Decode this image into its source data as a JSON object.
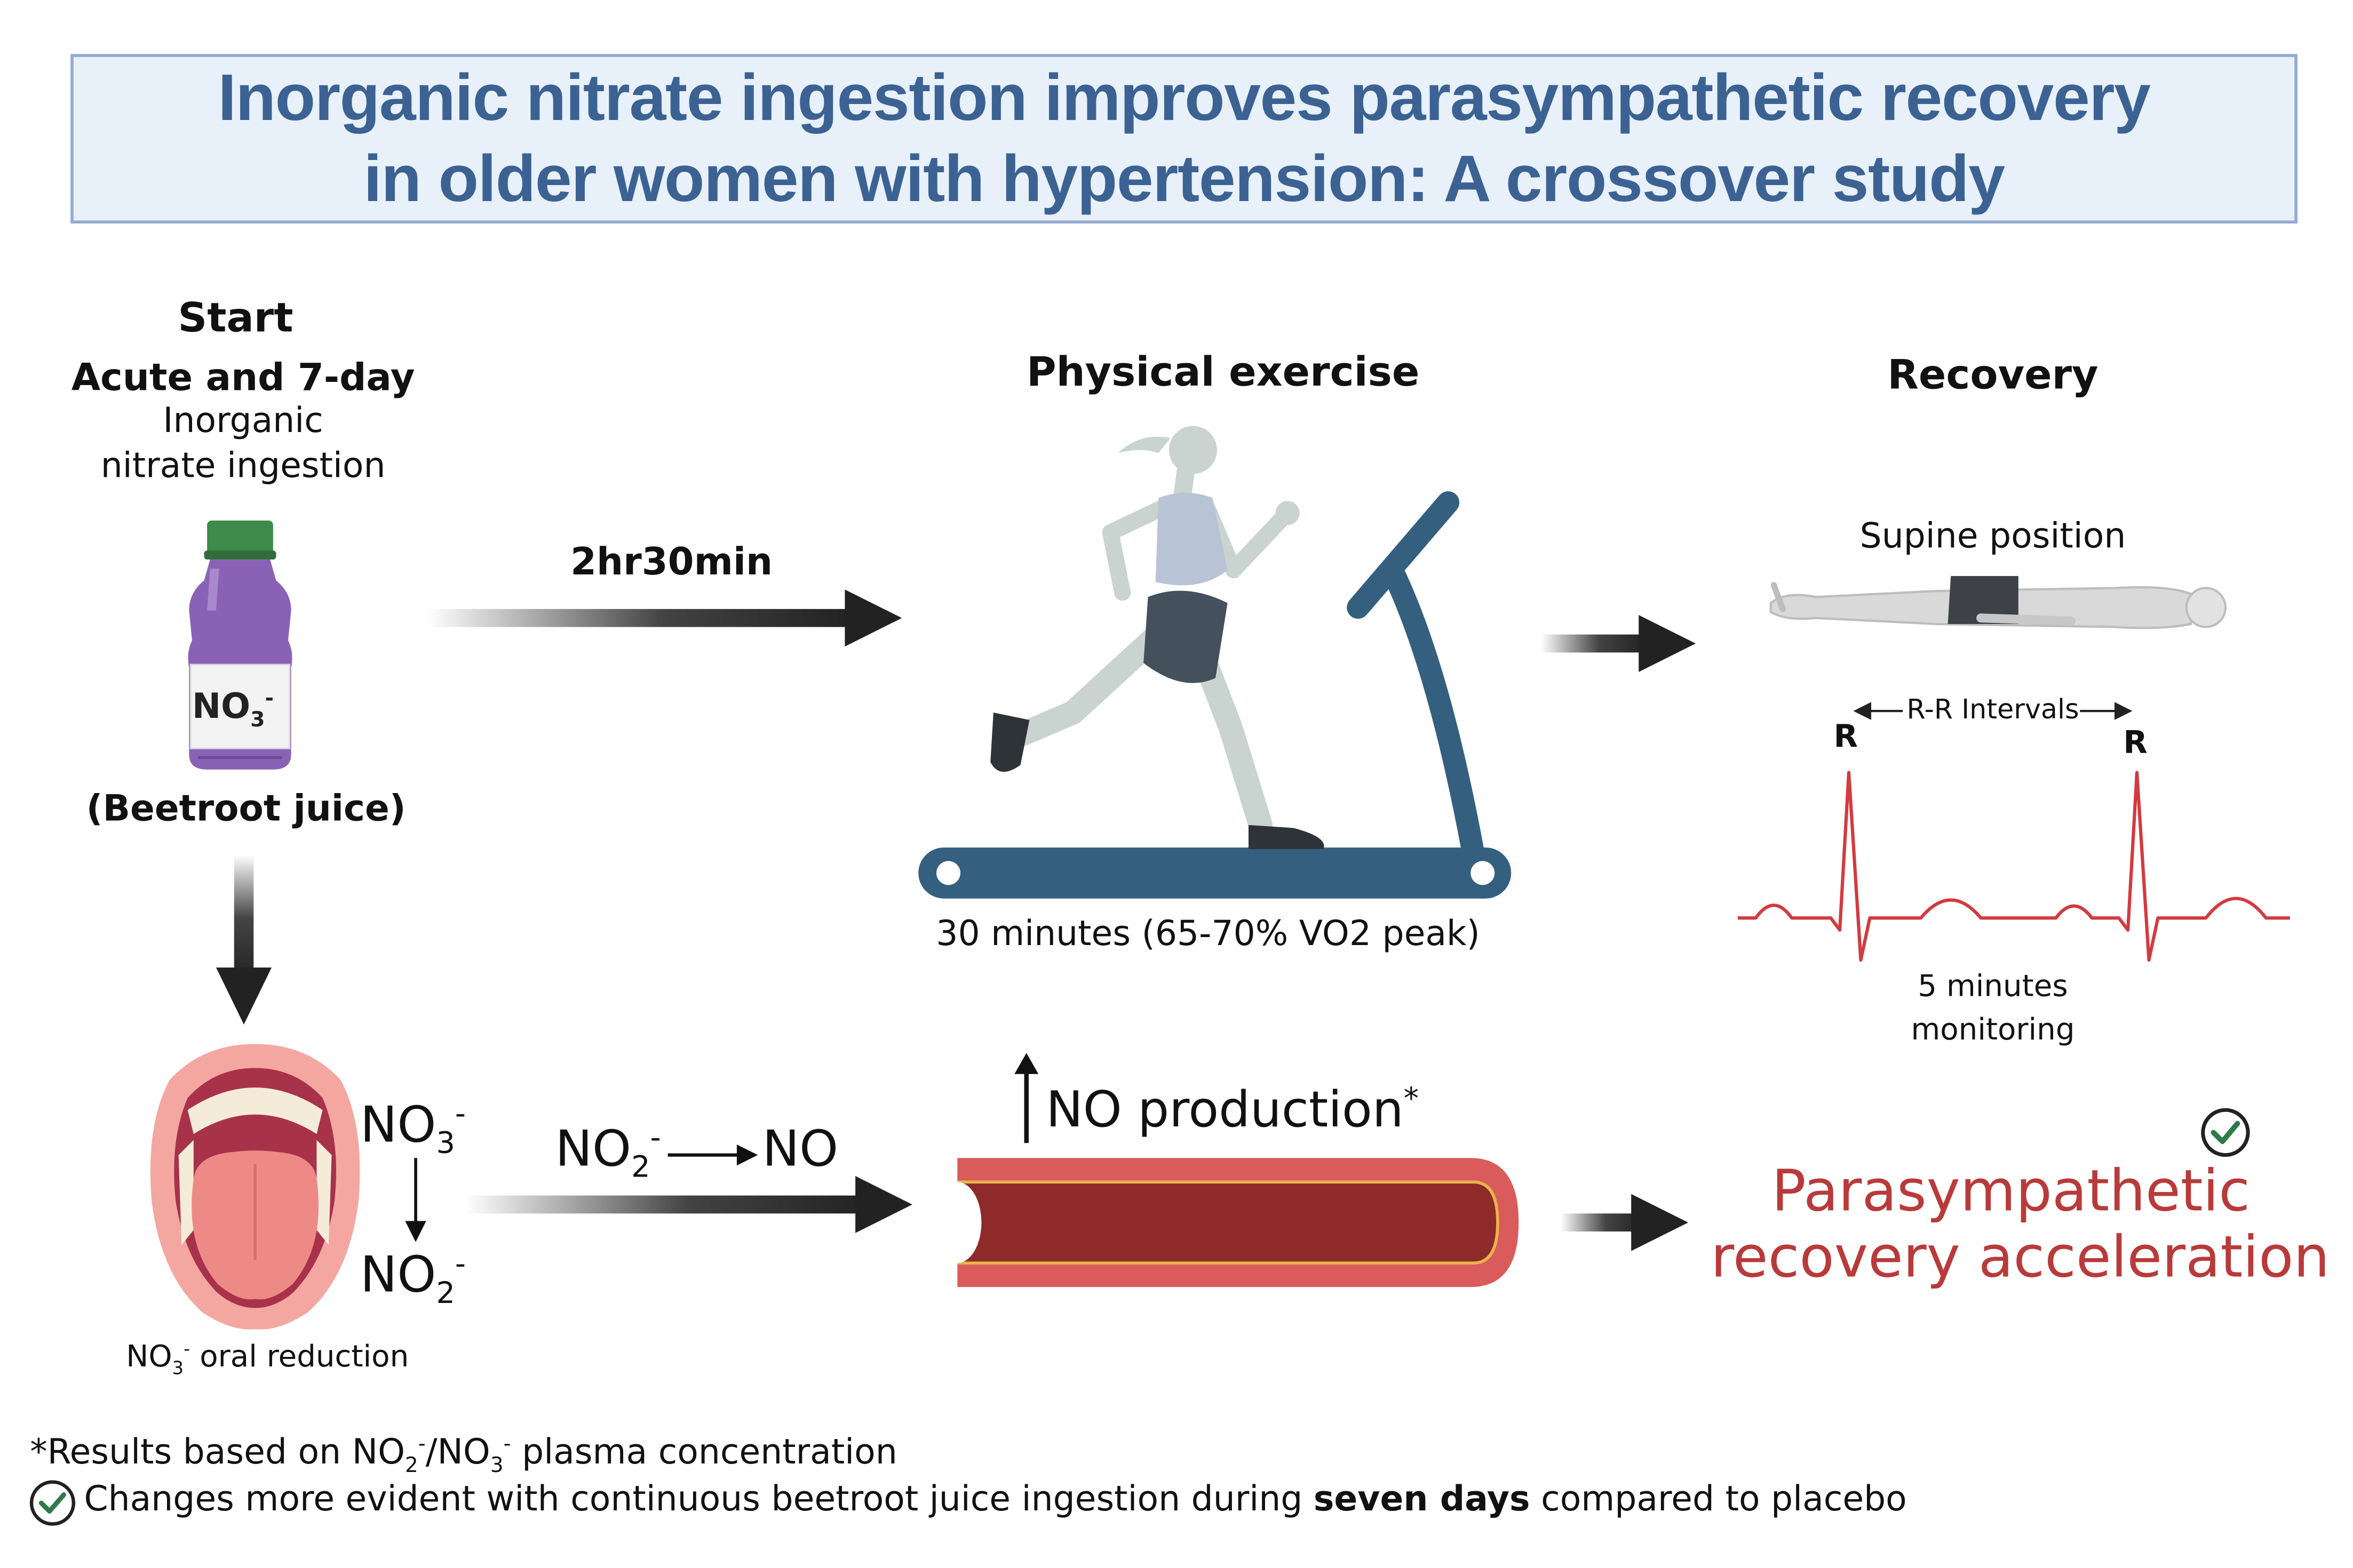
{
  "title": {
    "line1": "Inorganic nitrate ingestion improves parasympathetic recovery",
    "line2": "in older women with hypertension: A crossover study"
  },
  "start": {
    "heading": "Start",
    "subheading": "Acute and 7-day",
    "line1": "Inorganic",
    "line2": "nitrate ingestion",
    "bottle_label": {
      "base": "NO",
      "sub": "3",
      "sup": "-"
    },
    "caption": "(Beetroot juice)"
  },
  "arrow_delay_label": "2hr30min",
  "exercise": {
    "heading": "Physical exercise",
    "caption": "30 minutes (65-70% VO2 peak)"
  },
  "recovery": {
    "heading": "Recovery",
    "position_label": "Supine position",
    "rr_label": "R-R Intervals",
    "r_peak": "R",
    "monitoring_line1": "5 minutes",
    "monitoring_line2": "monitoring"
  },
  "oral": {
    "nitrate": {
      "base": "NO",
      "sub": "3",
      "sup": "-"
    },
    "nitrite": {
      "base": "NO",
      "sub": "2",
      "sup": "-"
    },
    "caption": {
      "base": "NO",
      "sub": "3",
      "sup": "-",
      "rest": " oral reduction"
    }
  },
  "conversion": {
    "from": {
      "base": "NO",
      "sub": "2",
      "sup": "-"
    },
    "to": "NO"
  },
  "vessel": {
    "label": "NO production",
    "asterisk": "*"
  },
  "outcome": {
    "line1": "Parasympathetic",
    "line2": "recovery acceleration"
  },
  "footnotes": {
    "note1": {
      "prefix": "*Results based on NO",
      "sub1": "2",
      "sup1": "-",
      "mid": "/NO",
      "sub2": "3",
      "sup2": "-",
      "suffix": " plasma concentration"
    },
    "note2": {
      "before": "Changes more evident with continuous beetroot juice ingestion during ",
      "bold": "seven days",
      "after": " compared to placebo"
    }
  },
  "colors": {
    "title_text": "#3b6293",
    "title_bg": "#e8f0fa",
    "title_border": "#93abd3",
    "treadmill": "#355f7e",
    "ecg": "#d33a3f",
    "outcome": "#b93a3a",
    "check": "#2f7a4a",
    "bottle": "#8a62b5",
    "cap": "#3d8a4a",
    "vessel_outer": "#d95b5b",
    "vessel_inner": "#8e2a2a"
  }
}
